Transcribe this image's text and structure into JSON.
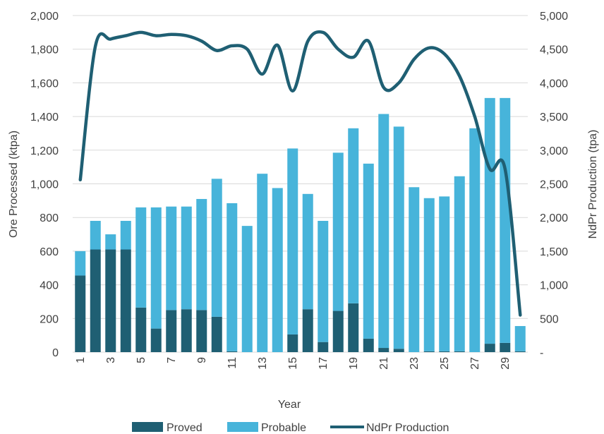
{
  "chart_data": {
    "type": "bar",
    "xlabel": "Year",
    "ylabel_left": "Ore Processed (ktpa)",
    "ylabel_right": "NdPr Production (tpa)",
    "ylim_left": [
      0,
      2000
    ],
    "ylim_right": [
      0,
      5000
    ],
    "left_ticks": [
      "0",
      "200",
      "400",
      "600",
      "800",
      "1,000",
      "1,200",
      "1,400",
      "1,600",
      "1,800",
      "2,000"
    ],
    "right_ticks": [
      "-",
      "500",
      "1,000",
      "1,500",
      "2,000",
      "2,500",
      "3,000",
      "3,500",
      "4,000",
      "4,500",
      "5,000"
    ],
    "x_tick_labels": [
      "1",
      "3",
      "5",
      "7",
      "9",
      "11",
      "13",
      "15",
      "17",
      "19",
      "21",
      "23",
      "25",
      "27",
      "29"
    ],
    "categories": [
      1,
      2,
      3,
      4,
      5,
      6,
      7,
      8,
      9,
      10,
      11,
      12,
      13,
      14,
      15,
      16,
      17,
      18,
      19,
      20,
      21,
      22,
      23,
      24,
      25,
      26,
      27,
      28,
      29,
      30
    ],
    "grid": true,
    "legend_position": "bottom",
    "colors": {
      "proved": "#1f5f73",
      "probable": "#47b4da",
      "line": "#1f5f73"
    },
    "series": [
      {
        "name": "Proved",
        "type": "bar-stacked",
        "axis": "left",
        "values": [
          455,
          610,
          610,
          610,
          265,
          140,
          250,
          255,
          250,
          210,
          5,
          0,
          0,
          0,
          105,
          255,
          60,
          245,
          290,
          80,
          25,
          20,
          0,
          5,
          5,
          5,
          0,
          50,
          55,
          5
        ]
      },
      {
        "name": "Probable",
        "type": "bar-stacked",
        "axis": "left",
        "values": [
          145,
          170,
          90,
          170,
          595,
          720,
          615,
          610,
          660,
          820,
          880,
          750,
          1060,
          975,
          1105,
          685,
          720,
          940,
          1040,
          1040,
          1390,
          1320,
          980,
          910,
          920,
          1040,
          1330,
          1460,
          1455,
          150
        ]
      },
      {
        "name": "NdPr Production",
        "type": "line",
        "axis": "right",
        "values": [
          2560,
          4550,
          4650,
          4700,
          4750,
          4700,
          4720,
          4700,
          4620,
          4480,
          4550,
          4500,
          4130,
          4560,
          3880,
          4620,
          4750,
          4500,
          4380,
          4620,
          3930,
          4000,
          4350,
          4520,
          4430,
          4100,
          3500,
          2720,
          2720,
          550
        ]
      }
    ]
  }
}
